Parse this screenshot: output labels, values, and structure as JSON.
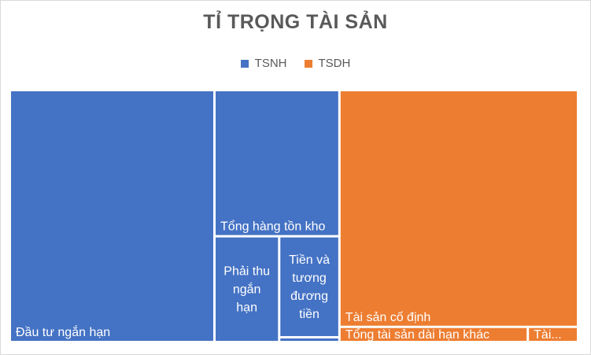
{
  "chart_data": {
    "type": "treemap",
    "title": "TỈ TRỌNG TÀI SẢN",
    "legend": {
      "placement": "top",
      "entries": [
        {
          "name": "TSNH",
          "color": "#4472C4"
        },
        {
          "name": "TSDH",
          "color": "#ED7D31"
        }
      ]
    },
    "series": [
      {
        "name": "TSNH",
        "color": "#4472C4",
        "items": [
          {
            "label": "Đầu tư ngắn hạn",
            "lines": [
              "Đầu tư ngắn hạn"
            ],
            "value": 271
          },
          {
            "label": "Tổng hàng tồn kho",
            "lines": [
              "Tổng hàng tồn kho"
            ],
            "value": 96
          },
          {
            "label": "Phải thu ngắn hạn",
            "lines": [
              "Phải thu",
              "ngắn",
              "hạn"
            ],
            "value": 36
          },
          {
            "label": "Tiền và tương đương tiền",
            "lines": [
              "Tiền và",
              "tương",
              "đương",
              "tiền"
            ],
            "value": 32
          },
          {
            "label": "",
            "lines": [],
            "value": 1.5
          }
        ]
      },
      {
        "name": "TSDH",
        "color": "#ED7D31",
        "items": [
          {
            "label": "Tài sản cố định",
            "lines": [
              "Tài sản cố định"
            ],
            "value": 297
          },
          {
            "label": "Tổng tài sản dài hạn khác",
            "lines": [
              "Tổng tài sản dài hạn khác"
            ],
            "value": 15
          },
          {
            "label": "Tài...",
            "lines": [
              "Tài..."
            ],
            "value": 4
          }
        ]
      }
    ]
  }
}
